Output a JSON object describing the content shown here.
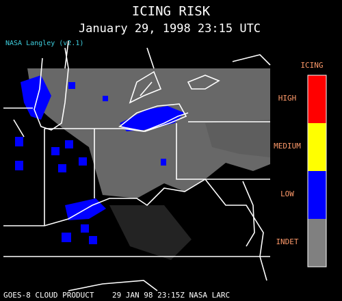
{
  "header": {
    "title": "ICING RISK",
    "subtitle": "January 29, 1998 23:15 UTC",
    "version": "NASA Langley (v2.1)"
  },
  "legend": {
    "title": "ICING",
    "levels": [
      {
        "label": "HIGH",
        "color": "#ff0000"
      },
      {
        "label": "MEDIUM",
        "color": "#ffff00"
      },
      {
        "label": "LOW",
        "color": "#0000ff"
      },
      {
        "label": "INDET",
        "color": "#808080"
      }
    ]
  },
  "footer": "GOES-8 CLOUD PRODUCT    29 JAN 98 23:15Z NASA LARC"
}
